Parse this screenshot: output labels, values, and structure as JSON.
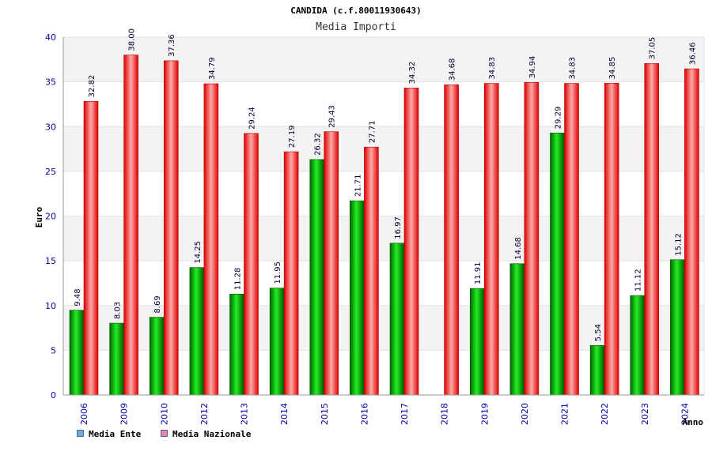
{
  "chart_data": {
    "type": "bar",
    "title": "CANDIDA (c.f.80011930643)",
    "subtitle": "Media Importi",
    "xlabel": "Anno",
    "ylabel": "Euro",
    "ylim": [
      0,
      40
    ],
    "yticks": [
      "0",
      "5",
      "10",
      "15",
      "20",
      "25",
      "30",
      "35",
      "40"
    ],
    "grid": true,
    "legend_position": "bottom-left",
    "categories": [
      "2006",
      "2009",
      "2010",
      "2012",
      "2013",
      "2014",
      "2015",
      "2016",
      "2017",
      "2018",
      "2019",
      "2020",
      "2021",
      "2022",
      "2023",
      "2024"
    ],
    "series": [
      {
        "name": "Media Ente",
        "color": "#00aa00",
        "legend_color": "#66aaee",
        "values": [
          9.48,
          8.03,
          8.69,
          14.25,
          11.28,
          11.95,
          26.32,
          21.71,
          16.97,
          null,
          11.91,
          14.68,
          29.29,
          5.54,
          11.12,
          15.12
        ],
        "labels": [
          "9.48",
          "8.03",
          "8.69",
          "14.25",
          "11.28",
          "11.95",
          "26.32",
          "21.71",
          "16.97",
          "",
          "11.91",
          "14.68",
          "29.29",
          "5.54",
          "11.12",
          "15.12"
        ]
      },
      {
        "name": "Media Nazionale",
        "color": "#ee1111",
        "legend_color": "#dd88bb",
        "values": [
          32.82,
          38.0,
          37.36,
          34.79,
          29.24,
          27.19,
          29.43,
          27.71,
          34.32,
          34.68,
          34.83,
          34.94,
          34.83,
          34.85,
          37.05,
          36.46
        ],
        "labels": [
          "32.82",
          "38.00",
          "37.36",
          "34.79",
          "29.24",
          "27.19",
          "29.43",
          "27.71",
          "34.32",
          "34.68",
          "34.83",
          "34.94",
          "34.83",
          "34.85",
          "37.05",
          "36.46"
        ]
      }
    ]
  }
}
